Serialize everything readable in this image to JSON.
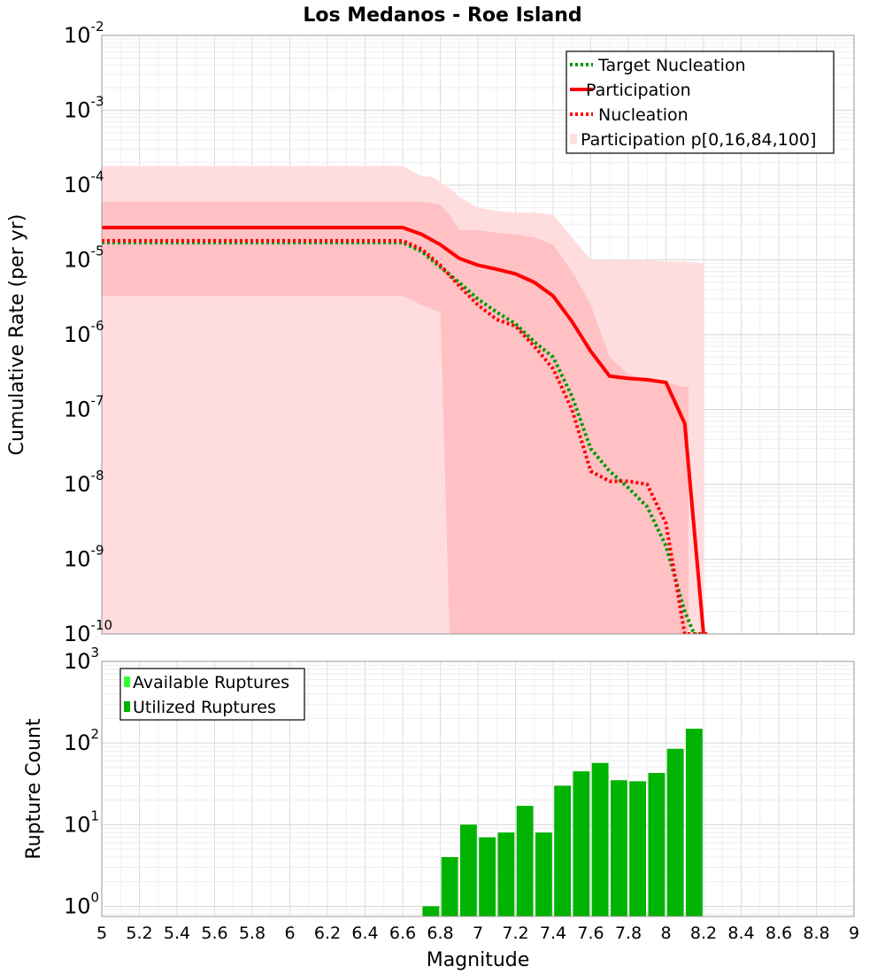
{
  "title": "Los Medanos - Roe Island",
  "x_axis": {
    "label": "Magnitude",
    "range": [
      5,
      9
    ],
    "ticks": [
      "5",
      "5.2",
      "5.4",
      "5.6",
      "5.8",
      "6",
      "6.2",
      "6.4",
      "6.6",
      "6.8",
      "7",
      "7.2",
      "7.4",
      "7.6",
      "7.8",
      "8",
      "8.2",
      "8.4",
      "8.6",
      "8.8",
      "9"
    ]
  },
  "colors": {
    "target_nucleation": "#009900",
    "participation": "#ff0000",
    "nucleation": "#ff0000",
    "band_outer": "#ffdddf",
    "band_inner": "#ffc1c4",
    "available_ruptures": "#33ff33",
    "utilized_ruptures": "#00b300"
  },
  "chart_data": [
    {
      "type": "line",
      "title": "Los Medanos - Roe Island",
      "ylabel": "Cumulative Rate (per yr)",
      "xlim": [
        5,
        9
      ],
      "ylim": [
        1e-10,
        0.01
      ],
      "y_scale": "log",
      "y_ticks": [
        {
          "base": "10",
          "exp": "-2"
        },
        {
          "base": "10",
          "exp": "-3"
        },
        {
          "base": "10",
          "exp": "-4"
        },
        {
          "base": "10",
          "exp": "-5"
        },
        {
          "base": "10",
          "exp": "-6"
        },
        {
          "base": "10",
          "exp": "-7"
        },
        {
          "base": "10",
          "exp": "-8"
        },
        {
          "base": "10",
          "exp": "-9"
        },
        {
          "base": "10",
          "exp": "-10"
        }
      ],
      "grid": true,
      "legend_position": "top-right",
      "legend": [
        "Target Nucleation",
        "Participation",
        "Nucleation",
        "Participation p[0,16,84,100]"
      ],
      "series": [
        {
          "name": "Participation p[0,16,84,100]",
          "style": "band-outer",
          "x": [
            5,
            6.6,
            6.7,
            6.75,
            6.8,
            6.85,
            6.9,
            7,
            7.1,
            7.2,
            7.3,
            7.4,
            7.5,
            7.6,
            7.7,
            7.8,
            7.9,
            8,
            8.1,
            8.2
          ],
          "upper": [
            0.00018,
            0.00018,
            0.00013,
            0.00013,
            0.00011,
            9e-05,
            7e-05,
            5e-05,
            4.5e-05,
            4.3e-05,
            4.3e-05,
            4e-05,
            2e-05,
            1e-05,
            1e-05,
            1e-05,
            1e-05,
            9.5e-06,
            9.5e-06,
            9e-06
          ],
          "lower": [
            1e-10,
            1e-10,
            1e-10,
            1e-10,
            1e-10,
            1e-10,
            1e-10,
            1e-10,
            1e-10,
            1e-10,
            1e-10,
            1e-10,
            1e-10,
            1e-10,
            1e-10,
            1e-10,
            1e-10,
            1e-10,
            1e-10,
            1e-10
          ]
        },
        {
          "name": "Participation 16-84",
          "style": "band-inner",
          "x": [
            5,
            6.6,
            6.7,
            6.8,
            6.85,
            6.9,
            7,
            7.1,
            7.2,
            7.3,
            7.4,
            7.5,
            7.6,
            7.7,
            7.8,
            7.9,
            8,
            8.1,
            8.12
          ],
          "upper": [
            6e-05,
            6e-05,
            6e-05,
            5.5e-05,
            4e-05,
            2.5e-05,
            2.5e-05,
            2.3e-05,
            2.2e-05,
            2e-05,
            1.6e-05,
            7e-06,
            2.5e-06,
            5e-07,
            3e-07,
            2.5e-07,
            2.3e-07,
            2e-07,
            2e-07
          ],
          "lower": [
            3.3e-06,
            3.3e-06,
            2.5e-06,
            2e-06,
            1e-10,
            1e-10,
            1e-10,
            1e-10,
            1e-10,
            1e-10,
            1e-10,
            1e-10,
            1e-10,
            1e-10,
            1e-10,
            1e-10,
            1e-10,
            1e-10,
            1e-10
          ]
        },
        {
          "name": "Participation",
          "style": "solid",
          "x": [
            5,
            6.6,
            6.7,
            6.8,
            6.9,
            7,
            7.1,
            7.2,
            7.3,
            7.4,
            7.5,
            7.6,
            7.7,
            7.8,
            7.9,
            8,
            8.1,
            8.2,
            8.22
          ],
          "y": [
            2.7e-05,
            2.7e-05,
            2.2e-05,
            1.6e-05,
            1.05e-05,
            8.5e-06,
            7.5e-06,
            6.5e-06,
            5e-06,
            3.3e-06,
            1.5e-06,
            6e-07,
            2.8e-07,
            2.6e-07,
            2.5e-07,
            2.3e-07,
            6.5e-08,
            1e-10,
            1e-10
          ]
        },
        {
          "name": "Target Nucleation",
          "style": "dotted",
          "x": [
            5,
            6.6,
            6.7,
            6.8,
            6.9,
            7,
            7.1,
            7.2,
            7.3,
            7.4,
            7.5,
            7.6,
            7.7,
            7.8,
            7.9,
            8,
            8.1,
            8.15,
            8.2
          ],
          "y": [
            1.7e-05,
            1.7e-05,
            1.3e-05,
            8e-06,
            5e-06,
            3e-06,
            2e-06,
            1.4e-06,
            8e-07,
            5e-07,
            1.5e-07,
            3e-08,
            1.5e-08,
            9e-09,
            5e-09,
            1.5e-09,
            2e-10,
            1e-10,
            1e-10
          ]
        },
        {
          "name": "Nucleation",
          "style": "dotted",
          "x": [
            5,
            6.6,
            6.7,
            6.8,
            6.9,
            7,
            7.1,
            7.2,
            7.3,
            7.4,
            7.5,
            7.6,
            7.7,
            7.8,
            7.9,
            8,
            8.1,
            8.2,
            8.22
          ],
          "y": [
            1.8e-05,
            1.8e-05,
            1.4e-05,
            8.5e-06,
            4.5e-06,
            2.5e-06,
            1.6e-06,
            1.3e-06,
            7e-07,
            3.5e-07,
            1e-07,
            1.5e-08,
            1.1e-08,
            1.1e-08,
            1e-08,
            3e-09,
            1e-10,
            1e-10,
            1e-10
          ]
        }
      ]
    },
    {
      "type": "bar",
      "ylabel": "Rupture Count",
      "xlabel": "Magnitude",
      "xlim": [
        5,
        9
      ],
      "ylim": [
        0.75,
        1000
      ],
      "y_scale": "log",
      "y_ticks": [
        {
          "base": "10",
          "exp": "3"
        },
        {
          "base": "10",
          "exp": "2"
        },
        {
          "base": "10",
          "exp": "1"
        },
        {
          "base": "10",
          "exp": "0"
        }
      ],
      "grid": true,
      "legend_position": "top-left",
      "legend": [
        "Available Ruptures",
        "Utilized Ruptures"
      ],
      "bin_width": 0.1,
      "x": [
        6.75,
        6.85,
        6.95,
        7.05,
        7.15,
        7.25,
        7.35,
        7.45,
        7.55,
        7.65,
        7.75,
        7.85,
        7.95,
        8.05,
        8.15
      ],
      "series": [
        {
          "name": "Utilized Ruptures",
          "values": [
            1,
            4,
            10,
            7,
            8,
            17,
            8,
            30,
            45,
            57,
            35,
            34,
            43,
            85,
            150
          ]
        }
      ]
    }
  ]
}
